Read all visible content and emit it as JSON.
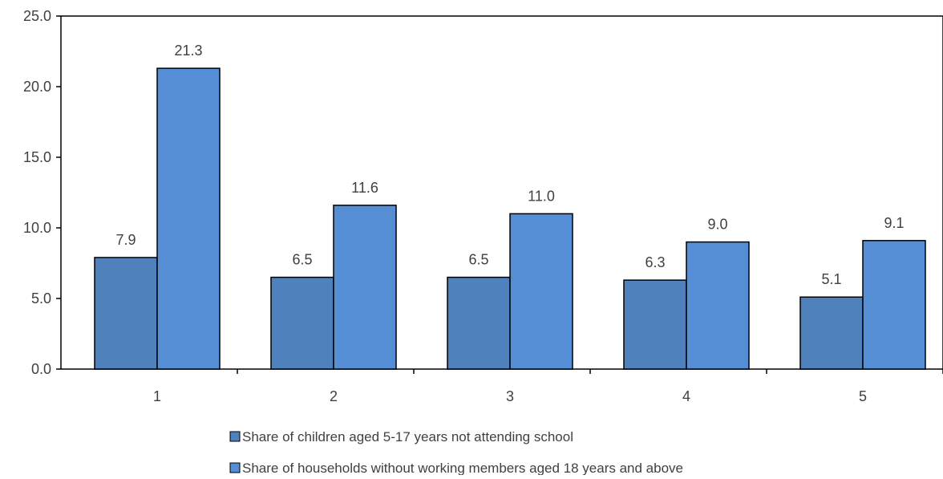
{
  "chart_data": {
    "type": "bar",
    "title": "",
    "xlabel": "",
    "ylabel": "",
    "categories": [
      "1",
      "2",
      "3",
      "4",
      "5"
    ],
    "series": [
      {
        "name": "Share of children aged 5-17 years not attending school",
        "color": "#4f81bd",
        "values": [
          7.9,
          6.5,
          6.5,
          6.3,
          5.1
        ],
        "labels": [
          "7.9",
          "6.5",
          "6.5",
          "6.3",
          "5.1"
        ]
      },
      {
        "name": "Share of households without working members aged 18 years and above",
        "color": "#558ed5",
        "values": [
          21.3,
          11.6,
          11.0,
          9.0,
          9.1
        ],
        "labels": [
          "21.3",
          "11.6",
          "11.0",
          "9.0",
          "9.1"
        ]
      }
    ],
    "ylim": [
      0,
      25
    ],
    "yticks": [
      0,
      5,
      10,
      15,
      20,
      25
    ],
    "ytick_labels": [
      "0.0",
      "5.0",
      "10.0",
      "15.0",
      "20.0",
      "25.0"
    ],
    "grid": false,
    "legend_position": "bottom",
    "bar_outline_color": "#000000"
  }
}
